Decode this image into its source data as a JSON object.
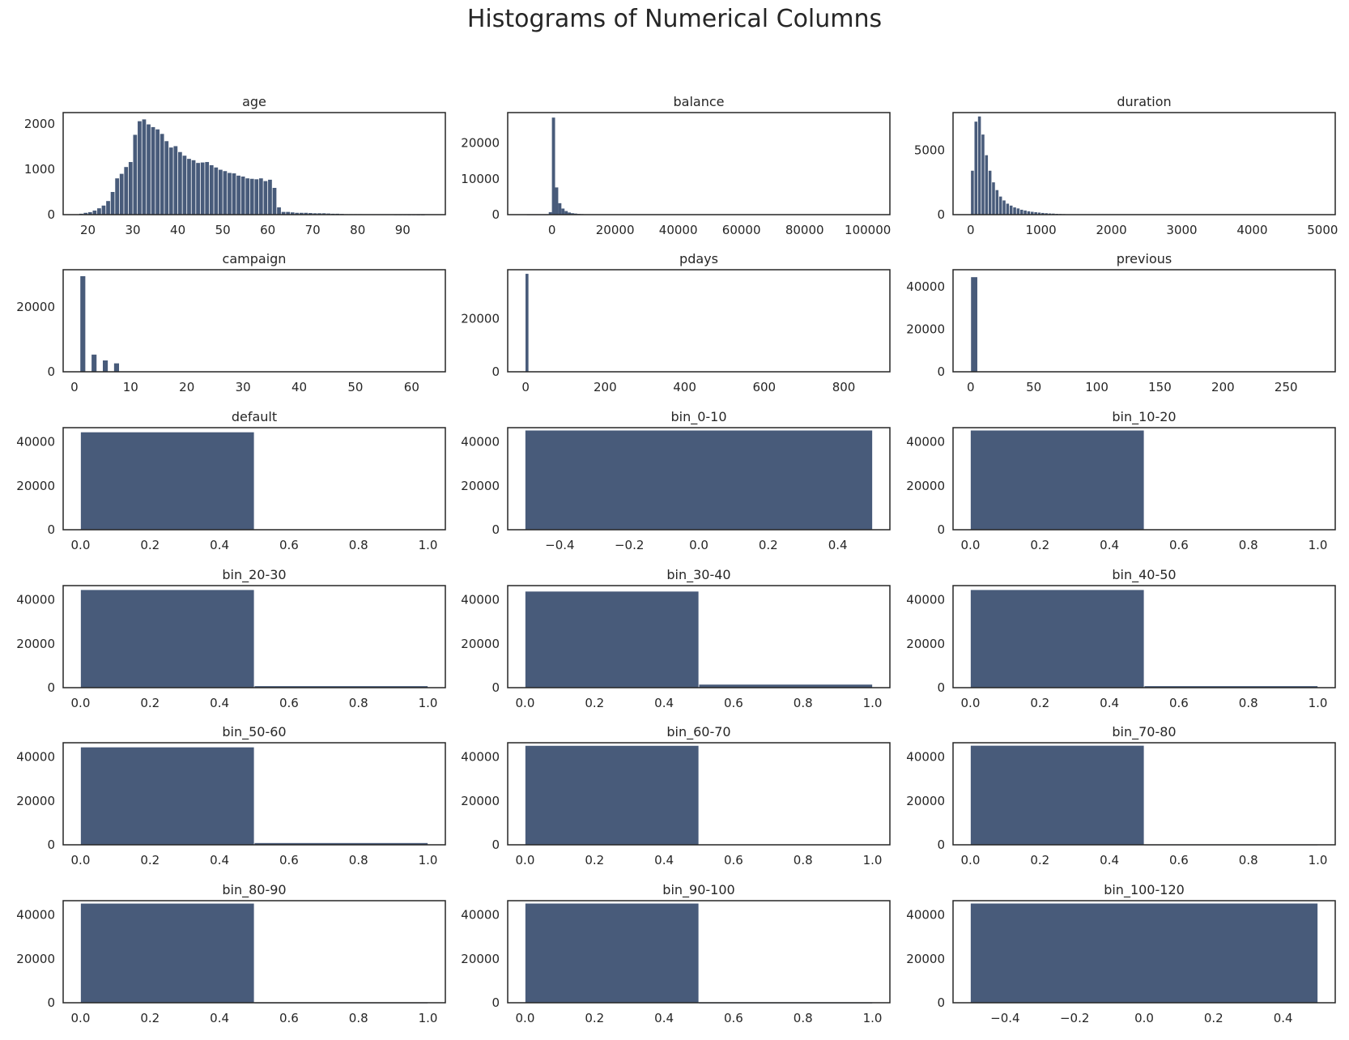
{
  "figure": {
    "title": "Histograms of Numerical Columns",
    "bar_color": "#485b7a",
    "axes_color": "#262626",
    "background": "#ffffff"
  },
  "chart_data": [
    {
      "type": "bar",
      "title": "age",
      "xlim": [
        14.5,
        99.5
      ],
      "ylim": [
        0,
        2250
      ],
      "xticks": [
        20,
        30,
        40,
        50,
        60,
        70,
        80,
        90
      ],
      "yticks": [
        0,
        1000,
        2000
      ],
      "bin_edges": [
        18,
        19,
        20,
        21,
        22,
        23,
        24,
        25,
        26,
        27,
        28,
        29,
        30,
        31,
        32,
        33,
        34,
        35,
        36,
        37,
        38,
        39,
        40,
        41,
        42,
        43,
        44,
        45,
        46,
        47,
        48,
        49,
        50,
        51,
        52,
        53,
        54,
        55,
        56,
        57,
        58,
        59,
        60,
        61,
        62,
        63,
        64,
        65,
        66,
        67,
        68,
        69,
        70,
        71,
        72,
        73,
        74,
        75,
        76,
        77,
        78,
        79,
        80,
        81,
        82,
        83,
        84,
        85,
        86,
        87,
        88,
        89,
        90,
        91,
        92,
        93,
        94,
        95
      ],
      "counts": [
        20,
        40,
        55,
        90,
        140,
        200,
        300,
        500,
        800,
        900,
        1050,
        1160,
        1760,
        2060,
        2100,
        1990,
        1930,
        1880,
        1780,
        1620,
        1480,
        1510,
        1380,
        1300,
        1230,
        1200,
        1140,
        1150,
        1160,
        1090,
        1040,
        990,
        960,
        920,
        910,
        860,
        840,
        800,
        790,
        780,
        800,
        740,
        770,
        590,
        160,
        60,
        60,
        50,
        40,
        40,
        40,
        35,
        30,
        30,
        30,
        25,
        20,
        20,
        15,
        10,
        10,
        10,
        10,
        8,
        8,
        5,
        5,
        5,
        5,
        5,
        3,
        3,
        3,
        2,
        2,
        1,
        1
      ]
    },
    {
      "type": "bar",
      "title": "balance",
      "xlim": [
        -14000,
        107000
      ],
      "ylim": [
        0,
        28500
      ],
      "xticks": [
        0,
        20000,
        40000,
        60000,
        80000,
        100000
      ],
      "yticks": [
        0,
        10000,
        20000
      ],
      "bin_edges": [
        -8000,
        -1000,
        0,
        1000,
        2000,
        3000,
        4000,
        5000,
        6000,
        7000,
        8000,
        9000,
        10000
      ],
      "counts": [
        40,
        700,
        27100,
        7600,
        3200,
        1700,
        1000,
        600,
        400,
        300,
        200,
        150
      ]
    },
    {
      "type": "bar",
      "title": "duration",
      "xlim": [
        -250,
        5180
      ],
      "ylim": [
        0,
        7900
      ],
      "xticks": [
        0,
        1000,
        2000,
        3000,
        4000,
        5000
      ],
      "yticks": [
        0,
        5000
      ],
      "bin_edges": [
        0,
        50,
        100,
        150,
        200,
        250,
        300,
        350,
        400,
        450,
        500,
        550,
        600,
        650,
        700,
        750,
        800,
        850,
        900,
        950,
        1000,
        1050,
        1100,
        1150,
        1200,
        1250,
        1300,
        1350,
        1400,
        1450,
        1500
      ],
      "counts": [
        3400,
        7200,
        7600,
        6200,
        4600,
        3400,
        2500,
        1900,
        1400,
        1100,
        850,
        700,
        560,
        480,
        380,
        320,
        260,
        220,
        190,
        160,
        130,
        110,
        90,
        80,
        60,
        50,
        40,
        30,
        25,
        20
      ]
    },
    {
      "type": "bar",
      "title": "campaign",
      "xlim": [
        -2,
        66
      ],
      "ylim": [
        0,
        31500
      ],
      "xticks": [
        0,
        10,
        20,
        30,
        40,
        50,
        60
      ],
      "yticks": [
        0,
        20000
      ],
      "bin_edges": [
        1,
        2,
        3,
        4,
        5,
        6,
        7,
        8,
        9,
        10,
        11,
        12,
        13
      ],
      "counts": [
        29500,
        0,
        5300,
        0,
        3500,
        0,
        2600,
        0,
        0,
        0,
        0,
        0
      ]
    },
    {
      "type": "bar",
      "title": "pdays",
      "xlim": [
        -45,
        916
      ],
      "ylim": [
        0,
        38500
      ],
      "xticks": [
        0,
        200,
        400,
        600,
        800
      ],
      "yticks": [
        0,
        20000
      ],
      "bin_edges": [
        -1,
        8
      ],
      "counts": [
        36954
      ]
    },
    {
      "type": "bar",
      "title": "previous",
      "xlim": [
        -14,
        289
      ],
      "ylim": [
        0,
        48000
      ],
      "xticks": [
        0,
        50,
        100,
        150,
        200,
        250
      ],
      "yticks": [
        0,
        20000,
        40000
      ],
      "bin_edges": [
        0,
        5.5
      ],
      "counts": [
        44500
      ]
    },
    {
      "type": "bar",
      "title": "default",
      "xlim": [
        -0.05,
        1.05
      ],
      "ylim": [
        0,
        46500
      ],
      "xticks": [
        "0.0",
        "0.2",
        "0.4",
        "0.6",
        "0.8",
        "1.0"
      ],
      "yticks": [
        0,
        20000,
        40000
      ],
      "bin_edges": [
        0,
        0.5,
        1
      ],
      "counts": [
        44396,
        0
      ]
    },
    {
      "type": "bar",
      "title": "bin_0-10",
      "xlim": [
        -0.55,
        0.55
      ],
      "ylim": [
        0,
        46500
      ],
      "xticks": [
        "−0.4",
        "−0.2",
        "0.0",
        "0.2",
        "0.4"
      ],
      "yticks": [
        0,
        20000,
        40000
      ],
      "bin_edges": [
        -0.5,
        0.5
      ],
      "counts": [
        45211
      ]
    },
    {
      "type": "bar",
      "title": "bin_10-20",
      "xlim": [
        -0.05,
        1.05
      ],
      "ylim": [
        0,
        46500
      ],
      "xticks": [
        "0.0",
        "0.2",
        "0.4",
        "0.6",
        "0.8",
        "1.0"
      ],
      "yticks": [
        0,
        20000,
        40000
      ],
      "bin_edges": [
        0,
        0.5,
        1
      ],
      "counts": [
        45211,
        0
      ]
    },
    {
      "type": "bar",
      "title": "bin_20-30",
      "xlim": [
        -0.05,
        1.05
      ],
      "ylim": [
        0,
        46500
      ],
      "xticks": [
        "0.0",
        "0.2",
        "0.4",
        "0.6",
        "0.8",
        "1.0"
      ],
      "yticks": [
        0,
        20000,
        40000
      ],
      "bin_edges": [
        0,
        0.5,
        1
      ],
      "counts": [
        44500,
        700
      ]
    },
    {
      "type": "bar",
      "title": "bin_30-40",
      "xlim": [
        -0.05,
        1.05
      ],
      "ylim": [
        0,
        46500
      ],
      "xticks": [
        "0.0",
        "0.2",
        "0.4",
        "0.6",
        "0.8",
        "1.0"
      ],
      "yticks": [
        0,
        20000,
        40000
      ],
      "bin_edges": [
        0,
        0.5,
        1
      ],
      "counts": [
        43800,
        1400
      ]
    },
    {
      "type": "bar",
      "title": "bin_40-50",
      "xlim": [
        -0.05,
        1.05
      ],
      "ylim": [
        0,
        46500
      ],
      "xticks": [
        "0.0",
        "0.2",
        "0.4",
        "0.6",
        "0.8",
        "1.0"
      ],
      "yticks": [
        0,
        20000,
        40000
      ],
      "bin_edges": [
        0,
        0.5,
        1
      ],
      "counts": [
        44500,
        700
      ]
    },
    {
      "type": "bar",
      "title": "bin_50-60",
      "xlim": [
        -0.05,
        1.05
      ],
      "ylim": [
        0,
        46500
      ],
      "xticks": [
        "0.0",
        "0.2",
        "0.4",
        "0.6",
        "0.8",
        "1.0"
      ],
      "yticks": [
        0,
        20000,
        40000
      ],
      "bin_edges": [
        0,
        0.5,
        1
      ],
      "counts": [
        44400,
        800
      ]
    },
    {
      "type": "bar",
      "title": "bin_60-70",
      "xlim": [
        -0.05,
        1.05
      ],
      "ylim": [
        0,
        46500
      ],
      "xticks": [
        "0.0",
        "0.2",
        "0.4",
        "0.6",
        "0.8",
        "1.0"
      ],
      "yticks": [
        0,
        20000,
        40000
      ],
      "bin_edges": [
        0,
        0.5,
        1
      ],
      "counts": [
        45100,
        100
      ]
    },
    {
      "type": "bar",
      "title": "bin_70-80",
      "xlim": [
        -0.05,
        1.05
      ],
      "ylim": [
        0,
        46500
      ],
      "xticks": [
        "0.0",
        "0.2",
        "0.4",
        "0.6",
        "0.8",
        "1.0"
      ],
      "yticks": [
        0,
        20000,
        40000
      ],
      "bin_edges": [
        0,
        0.5,
        1
      ],
      "counts": [
        45150,
        60
      ]
    },
    {
      "type": "bar",
      "title": "bin_80-90",
      "xlim": [
        -0.05,
        1.05
      ],
      "ylim": [
        0,
        46500
      ],
      "xticks": [
        "0.0",
        "0.2",
        "0.4",
        "0.6",
        "0.8",
        "1.0"
      ],
      "yticks": [
        0,
        20000,
        40000
      ],
      "bin_edges": [
        0,
        0.5,
        1
      ],
      "counts": [
        45180,
        30
      ]
    },
    {
      "type": "bar",
      "title": "bin_90-100",
      "xlim": [
        -0.05,
        1.05
      ],
      "ylim": [
        0,
        46500
      ],
      "xticks": [
        "0.0",
        "0.2",
        "0.4",
        "0.6",
        "0.8",
        "1.0"
      ],
      "yticks": [
        0,
        20000,
        40000
      ],
      "bin_edges": [
        0,
        0.5,
        1
      ],
      "counts": [
        45200,
        10
      ]
    },
    {
      "type": "bar",
      "title": "bin_100-120",
      "xlim": [
        -0.55,
        0.55
      ],
      "ylim": [
        0,
        46500
      ],
      "xticks": [
        "−0.4",
        "−0.2",
        "0.0",
        "0.2",
        "0.4"
      ],
      "yticks": [
        0,
        20000,
        40000
      ],
      "bin_edges": [
        -0.5,
        0.5
      ],
      "counts": [
        45211
      ]
    }
  ]
}
